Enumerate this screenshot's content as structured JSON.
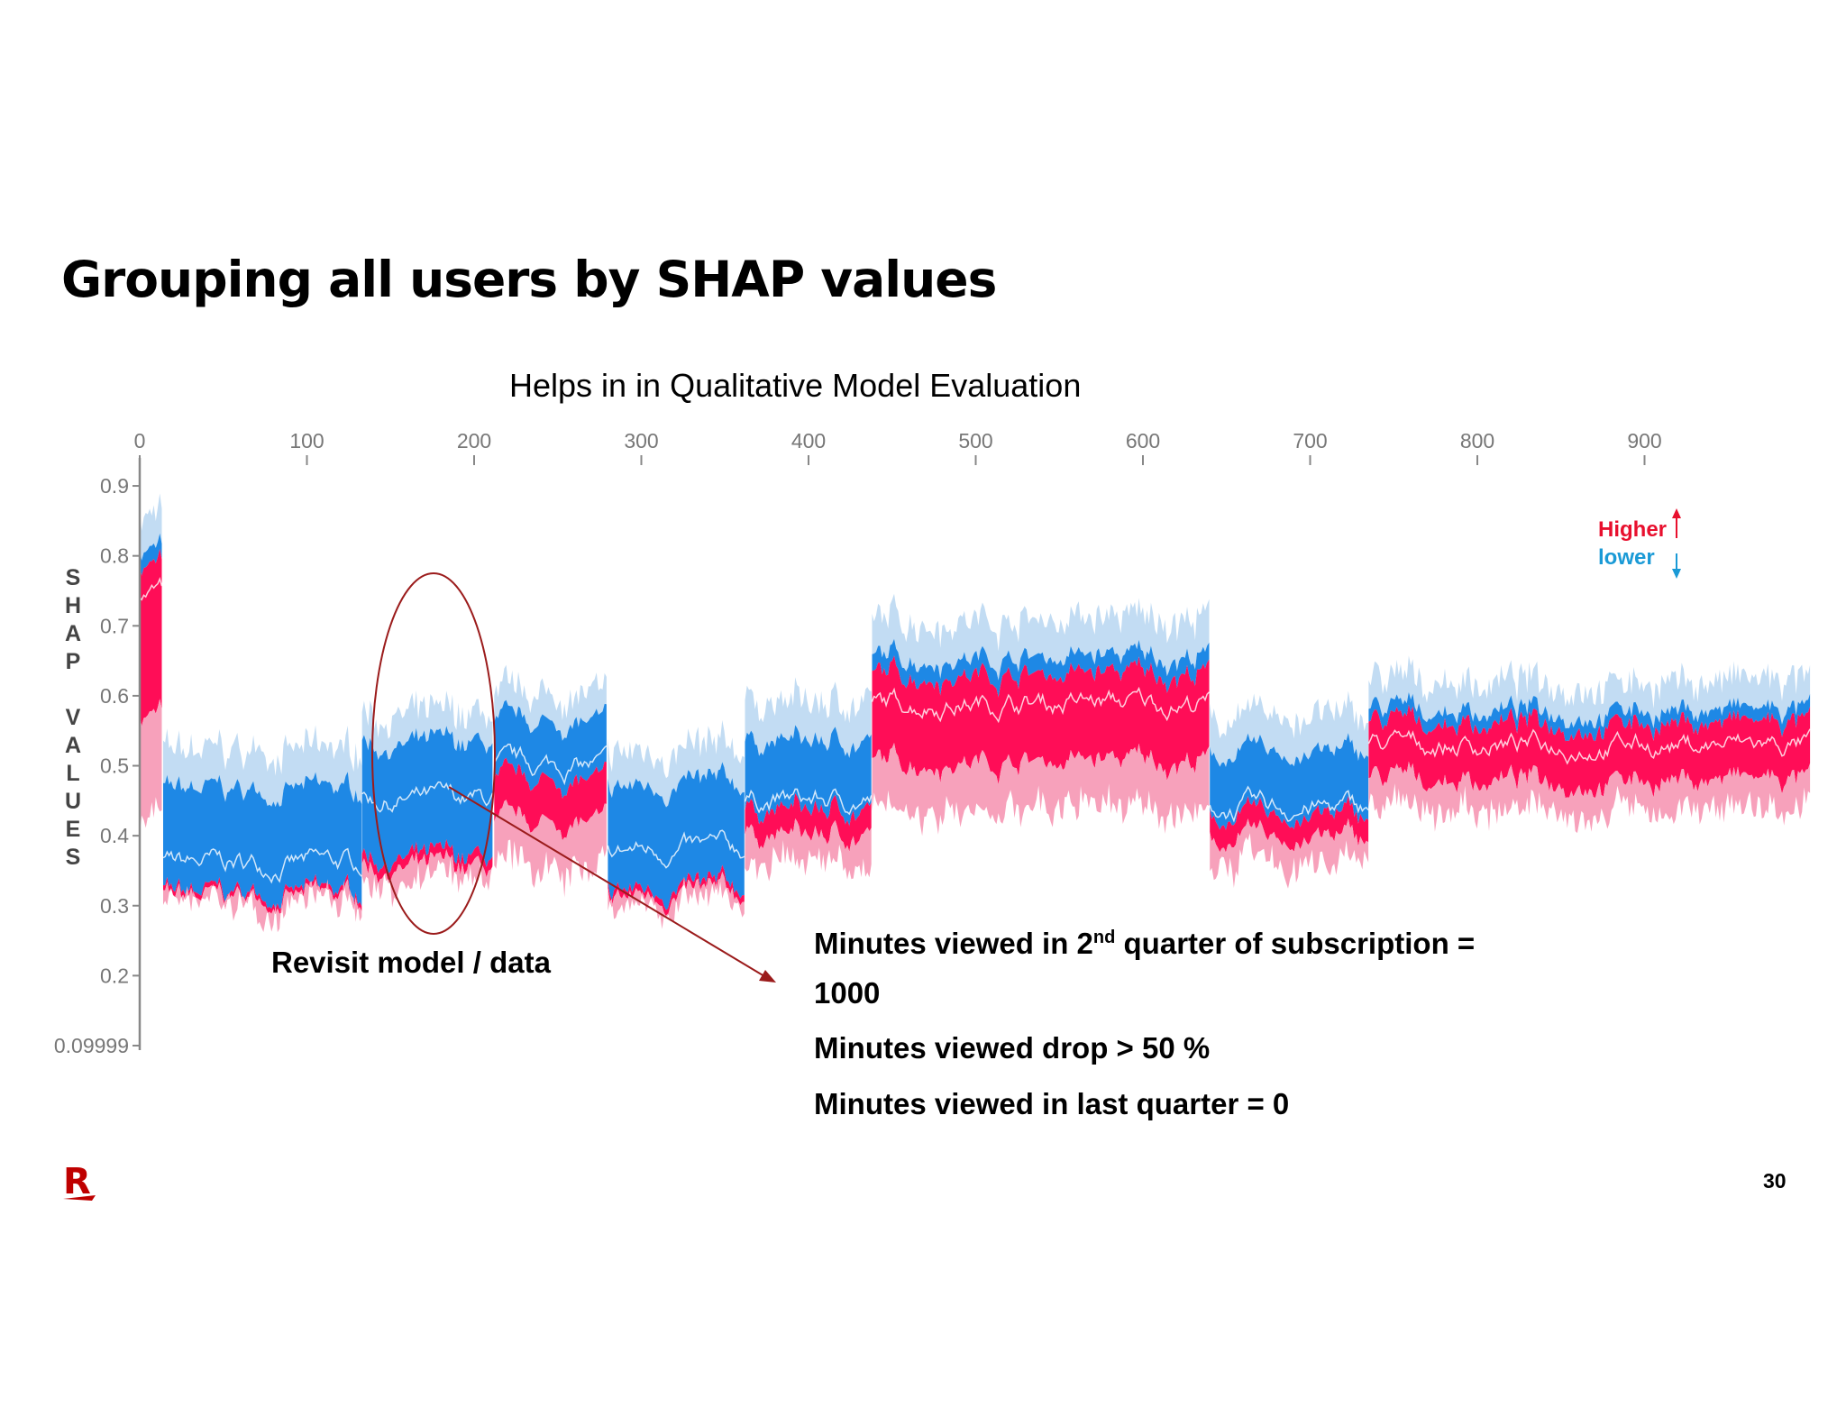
{
  "slide": {
    "title": "Grouping all users by SHAP values",
    "subtitle": "Helps in in Qualitative Model Evaluation",
    "page_number": "30",
    "logo_text": "R"
  },
  "chart_data": {
    "type": "area",
    "title": "",
    "ylabel": "SHAP VALUES",
    "xlim": [
      0,
      1000
    ],
    "ylim": [
      0.09999,
      0.94
    ],
    "x_ticks": [
      0,
      100,
      200,
      300,
      400,
      500,
      600,
      700,
      800,
      900
    ],
    "y_ticks": [
      "0.9",
      "0.8",
      "0.7",
      "0.6",
      "0.5",
      "0.4",
      "0.3",
      "0.2",
      "0.09999"
    ],
    "y_tick_values": [
      0.9,
      0.8,
      0.7,
      0.6,
      0.5,
      0.4,
      0.3,
      0.2,
      0.09999
    ],
    "legend": {
      "higher": "Higher",
      "lower": "lower",
      "placement": "top-right"
    },
    "grid": false,
    "colors": {
      "higher_dark": "#ff0d57",
      "higher_light": "#f7a1bb",
      "lower_dark": "#1e88e5",
      "lower_light": "#c2dcf3"
    },
    "segments": [
      {
        "x": [
          0,
          14
        ],
        "output_value": 0.75,
        "dominant": "higher",
        "top": 0.86,
        "bottom": 0.43
      },
      {
        "x": [
          14,
          133
        ],
        "output_value": 0.36,
        "dominant": "lower",
        "top": 0.52,
        "bottom": 0.3
      },
      {
        "x": [
          133,
          212
        ],
        "output_value": 0.45,
        "dominant": "lower",
        "top": 0.57,
        "bottom": 0.33
      },
      {
        "x": [
          212,
          280
        ],
        "output_value": 0.5,
        "dominant": "mixed",
        "top": 0.6,
        "bottom": 0.35
      },
      {
        "x": [
          280,
          362
        ],
        "output_value": 0.38,
        "dominant": "lower",
        "top": 0.52,
        "bottom": 0.3
      },
      {
        "x": [
          362,
          438
        ],
        "output_value": 0.45,
        "dominant": "mixed",
        "top": 0.59,
        "bottom": 0.36
      },
      {
        "x": [
          438,
          640
        ],
        "output_value": 0.59,
        "dominant": "higher",
        "top": 0.71,
        "bottom": 0.44
      },
      {
        "x": [
          640,
          735
        ],
        "output_value": 0.44,
        "dominant": "mixed",
        "top": 0.57,
        "bottom": 0.36
      },
      {
        "x": [
          735,
          1000
        ],
        "output_value": 0.53,
        "dominant": "higher",
        "top": 0.62,
        "bottom": 0.44
      }
    ]
  },
  "annotations": {
    "revisit": "Revisit model / data",
    "notes": {
      "line1_pre": "Minutes viewed in 2",
      "line1_sup": "nd",
      "line1_post": " quarter of subscription =",
      "line2": "1000",
      "line3": "Minutes viewed drop > 50 %",
      "line4": "Minutes viewed in last quarter = 0"
    }
  }
}
